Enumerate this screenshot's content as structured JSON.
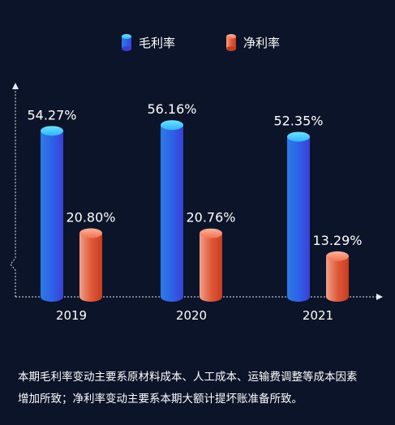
{
  "chart_data": {
    "type": "bar",
    "categories": [
      "2019",
      "2020",
      "2021"
    ],
    "series": [
      {
        "name": "毛利率",
        "values": [
          54.27,
          56.16,
          52.35
        ],
        "labels": [
          "54.27%",
          "56.16%",
          "52.35%"
        ]
      },
      {
        "name": "净利率",
        "values": [
          20.8,
          20.76,
          13.29
        ],
        "labels": [
          "20.80%",
          "20.76%",
          "13.29%"
        ]
      }
    ],
    "ylim": [
      0,
      70
    ],
    "axis_break": true,
    "grid": false,
    "legend_position": "top-center",
    "title": "",
    "xlabel": "",
    "ylabel": ""
  },
  "colors": {
    "background": "#0b1428",
    "series_1_top": "#2fc9ff",
    "series_1_body": "#2a57e0",
    "series_2_top": "#f28a6b",
    "series_2_body": "#d6492a",
    "axis": "#e8ecf4"
  },
  "note": {
    "line1": "本期毛利率变动主要系原材料成本、人工成本、运输费调整等成本因素",
    "line2": "增加所致；净利率变动主要系本期大额计提坏账准备所致。"
  }
}
